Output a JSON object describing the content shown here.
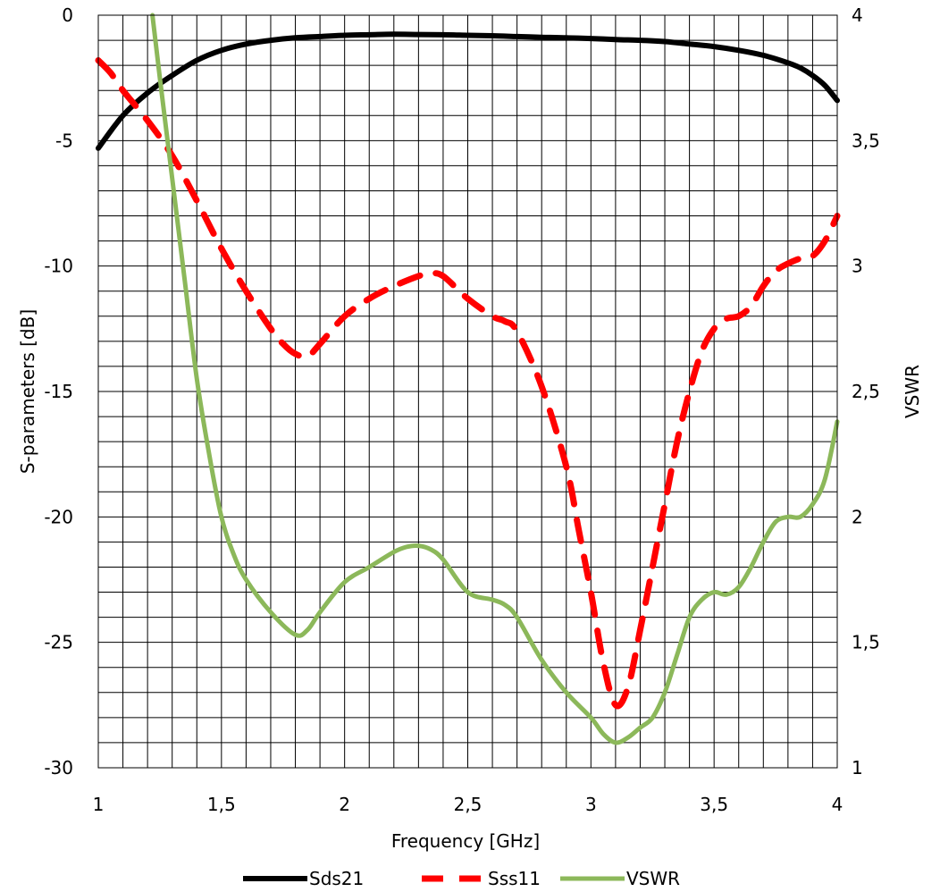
{
  "chart_data": {
    "type": "line",
    "xlabel": "Frequency [GHz]",
    "ylabel": "S-parameters [dB]",
    "y2label": "VSWR",
    "xlim": [
      1,
      4
    ],
    "ylim": [
      -30,
      0
    ],
    "y2lim": [
      1,
      4
    ],
    "x_ticks": [
      {
        "v": 1,
        "label": "1"
      },
      {
        "v": 1.5,
        "label": "1,5"
      },
      {
        "v": 2,
        "label": "2"
      },
      {
        "v": 2.5,
        "label": "2,5"
      },
      {
        "v": 3,
        "label": "3"
      },
      {
        "v": 3.5,
        "label": "3,5"
      },
      {
        "v": 4,
        "label": "4"
      }
    ],
    "y_ticks": [
      {
        "v": 0,
        "label": "0"
      },
      {
        "v": -5,
        "label": "-5"
      },
      {
        "v": -10,
        "label": "-10"
      },
      {
        "v": -15,
        "label": "-15"
      },
      {
        "v": -20,
        "label": "-20"
      },
      {
        "v": -25,
        "label": "-25"
      },
      {
        "v": -30,
        "label": "-30"
      }
    ],
    "y2_ticks": [
      {
        "v": 4,
        "label": "4"
      },
      {
        "v": 3.5,
        "label": "3,5"
      },
      {
        "v": 3,
        "label": "3"
      },
      {
        "v": 2.5,
        "label": "2,5"
      },
      {
        "v": 2,
        "label": "2"
      },
      {
        "v": 1.5,
        "label": "1,5"
      },
      {
        "v": 1,
        "label": "1"
      }
    ],
    "grid": true,
    "legend": "bottom",
    "series": [
      {
        "name": "Sds21",
        "axis": "left",
        "color": "#000000",
        "style": "solid",
        "x": [
          1.0,
          1.1,
          1.2,
          1.3,
          1.4,
          1.5,
          1.6,
          1.7,
          1.8,
          1.9,
          2.0,
          2.1,
          2.2,
          2.3,
          2.4,
          2.5,
          2.6,
          2.7,
          2.8,
          2.9,
          3.0,
          3.1,
          3.2,
          3.3,
          3.4,
          3.5,
          3.6,
          3.7,
          3.8,
          3.85,
          3.9,
          3.95,
          4.0
        ],
        "y": [
          -5.3,
          -4.0,
          -3.1,
          -2.4,
          -1.8,
          -1.4,
          -1.15,
          -1.0,
          -0.9,
          -0.85,
          -0.8,
          -0.78,
          -0.76,
          -0.77,
          -0.78,
          -0.8,
          -0.82,
          -0.85,
          -0.88,
          -0.9,
          -0.93,
          -0.97,
          -1.0,
          -1.05,
          -1.15,
          -1.25,
          -1.4,
          -1.6,
          -1.9,
          -2.1,
          -2.4,
          -2.8,
          -3.4
        ]
      },
      {
        "name": "Sss11",
        "axis": "left",
        "color": "#ff0000",
        "style": "dashed",
        "x": [
          1.0,
          1.05,
          1.1,
          1.2,
          1.3,
          1.4,
          1.5,
          1.6,
          1.7,
          1.75,
          1.8,
          1.85,
          1.9,
          2.0,
          2.1,
          2.2,
          2.3,
          2.35,
          2.4,
          2.5,
          2.6,
          2.65,
          2.7,
          2.8,
          2.9,
          2.95,
          3.0,
          3.05,
          3.1,
          3.15,
          3.2,
          3.25,
          3.3,
          3.35,
          3.4,
          3.45,
          3.5,
          3.55,
          3.6,
          3.65,
          3.7,
          3.75,
          3.8,
          3.85,
          3.9,
          3.95,
          4.0
        ],
        "y": [
          -1.8,
          -2.3,
          -3.0,
          -4.2,
          -5.6,
          -7.4,
          -9.3,
          -11.0,
          -12.5,
          -13.1,
          -13.5,
          -13.6,
          -13.1,
          -12.0,
          -11.3,
          -10.8,
          -10.4,
          -10.3,
          -10.4,
          -11.3,
          -12.0,
          -12.2,
          -12.6,
          -14.8,
          -18.0,
          -20.5,
          -23.0,
          -25.8,
          -27.5,
          -26.8,
          -24.5,
          -22.0,
          -19.5,
          -17.0,
          -15.0,
          -13.4,
          -12.5,
          -12.1,
          -12.0,
          -11.6,
          -10.8,
          -10.2,
          -9.9,
          -9.7,
          -9.6,
          -9.0,
          -8.0
        ]
      },
      {
        "name": "VSWR",
        "axis": "right",
        "color": "#8cb85a",
        "style": "solid",
        "x": [
          1.22,
          1.25,
          1.3,
          1.35,
          1.4,
          1.45,
          1.5,
          1.55,
          1.6,
          1.7,
          1.8,
          1.85,
          1.9,
          2.0,
          2.1,
          2.2,
          2.25,
          2.3,
          2.35,
          2.4,
          2.5,
          2.6,
          2.65,
          2.7,
          2.8,
          2.9,
          3.0,
          3.05,
          3.1,
          3.15,
          3.2,
          3.25,
          3.3,
          3.35,
          3.4,
          3.45,
          3.5,
          3.55,
          3.6,
          3.65,
          3.7,
          3.75,
          3.8,
          3.85,
          3.9,
          3.95,
          4.0
        ],
        "y": [
          4.0,
          3.75,
          3.35,
          2.95,
          2.55,
          2.25,
          2.0,
          1.85,
          1.75,
          1.62,
          1.53,
          1.55,
          1.62,
          1.74,
          1.8,
          1.86,
          1.88,
          1.885,
          1.87,
          1.83,
          1.7,
          1.67,
          1.65,
          1.6,
          1.43,
          1.3,
          1.2,
          1.135,
          1.1,
          1.12,
          1.16,
          1.2,
          1.3,
          1.45,
          1.6,
          1.67,
          1.7,
          1.69,
          1.72,
          1.8,
          1.9,
          1.98,
          2.0,
          2.0,
          2.05,
          2.15,
          2.38
        ]
      }
    ]
  }
}
